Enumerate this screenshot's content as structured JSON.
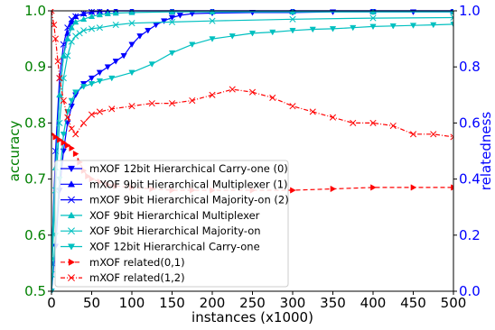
{
  "chart_data": {
    "type": "line",
    "xlabel": "instances (x1000)",
    "ylabel_left": "accuracy",
    "ylabel_right": "relatedness",
    "xlim": [
      0,
      500
    ],
    "ylim_left": [
      0.5,
      1.0
    ],
    "ylim_right": [
      0.0,
      1.0
    ],
    "x_ticks": [
      "0",
      "50",
      "100",
      "150",
      "200",
      "250",
      "300",
      "350",
      "400",
      "450",
      "500"
    ],
    "y_left_ticks": [
      "0.5",
      "0.6",
      "0.7",
      "0.8",
      "0.9",
      "1.0"
    ],
    "y_right_ticks": [
      "0.0",
      "0.2",
      "0.4",
      "0.6",
      "0.8",
      "1.0"
    ],
    "left_axis_color": "#008000",
    "right_axis_color": "#0000ff",
    "legend_position": "lower-left",
    "series": [
      {
        "name": "mXOF 12bit Hierarchical Carry-one (0)",
        "axis": "left",
        "color": "#0000ff",
        "marker": "triangle-down",
        "dash": "solid",
        "x": [
          0,
          5,
          10,
          15,
          20,
          25,
          30,
          40,
          50,
          60,
          70,
          80,
          90,
          100,
          110,
          120,
          130,
          140,
          150,
          160,
          175,
          200,
          250,
          300,
          350,
          400,
          450,
          500
        ],
        "y": [
          0.5,
          0.58,
          0.68,
          0.75,
          0.8,
          0.83,
          0.85,
          0.87,
          0.88,
          0.89,
          0.9,
          0.91,
          0.92,
          0.94,
          0.955,
          0.965,
          0.975,
          0.982,
          0.988,
          0.992,
          0.995,
          0.996,
          0.997,
          0.997,
          0.998,
          0.998,
          0.998,
          0.998
        ]
      },
      {
        "name": "mXOF 9bit Hierarchical Multiplexer (1)",
        "axis": "left",
        "color": "#0000ff",
        "marker": "triangle-up",
        "dash": "solid",
        "x": [
          0,
          5,
          10,
          15,
          20,
          25,
          30,
          40,
          50,
          60,
          70,
          80,
          100,
          150,
          200,
          300,
          400,
          500
        ],
        "y": [
          0.55,
          0.72,
          0.85,
          0.92,
          0.96,
          0.98,
          0.99,
          0.995,
          0.998,
          0.999,
          0.999,
          1.0,
          1.0,
          1.0,
          1.0,
          1.0,
          1.0,
          1.0
        ]
      },
      {
        "name": "mXOF 9bit Hierarchical Majority-on (2)",
        "axis": "left",
        "color": "#0000ff",
        "marker": "x",
        "dash": "solid",
        "x": [
          0,
          5,
          10,
          15,
          20,
          25,
          30,
          40,
          50,
          60,
          80,
          100,
          150,
          200,
          300,
          400,
          500
        ],
        "y": [
          0.55,
          0.75,
          0.88,
          0.94,
          0.97,
          0.985,
          0.99,
          0.995,
          0.998,
          0.999,
          1.0,
          1.0,
          1.0,
          1.0,
          1.0,
          1.0,
          1.0
        ]
      },
      {
        "name": "XOF 9bit Hierarchical Multiplexer",
        "axis": "left",
        "color": "#00c0c0",
        "marker": "triangle-up",
        "dash": "solid",
        "x": [
          0,
          5,
          10,
          15,
          20,
          25,
          30,
          40,
          50,
          60,
          70,
          80,
          100,
          150,
          200,
          300,
          400,
          500
        ],
        "y": [
          0.56,
          0.72,
          0.85,
          0.92,
          0.95,
          0.97,
          0.98,
          0.985,
          0.99,
          0.993,
          0.995,
          0.996,
          0.997,
          0.998,
          0.998,
          0.998,
          0.998,
          0.998
        ]
      },
      {
        "name": "XOF 9bit Hierarchical Majority-on",
        "axis": "left",
        "color": "#00c0c0",
        "marker": "x",
        "dash": "solid",
        "x": [
          0,
          5,
          10,
          15,
          20,
          25,
          30,
          35,
          40,
          50,
          60,
          80,
          100,
          150,
          200,
          300,
          400,
          500
        ],
        "y": [
          0.53,
          0.68,
          0.8,
          0.88,
          0.92,
          0.945,
          0.955,
          0.96,
          0.965,
          0.968,
          0.97,
          0.975,
          0.978,
          0.98,
          0.982,
          0.985,
          0.987,
          0.988
        ]
      },
      {
        "name": "XOF 12bit Hierarchical Carry-one",
        "axis": "left",
        "color": "#00c0c0",
        "marker": "triangle-down",
        "dash": "solid",
        "x": [
          0,
          5,
          10,
          15,
          20,
          25,
          30,
          40,
          50,
          60,
          75,
          100,
          125,
          150,
          175,
          200,
          225,
          250,
          275,
          300,
          325,
          350,
          375,
          400,
          425,
          450,
          475,
          500
        ],
        "y": [
          0.5,
          0.6,
          0.7,
          0.78,
          0.82,
          0.84,
          0.855,
          0.865,
          0.87,
          0.875,
          0.88,
          0.89,
          0.905,
          0.925,
          0.94,
          0.95,
          0.955,
          0.96,
          0.962,
          0.965,
          0.967,
          0.968,
          0.97,
          0.972,
          0.973,
          0.974,
          0.975,
          0.976
        ]
      },
      {
        "name": "mXOF related(0,1)",
        "axis": "right",
        "color": "#ff0000",
        "marker": "triangle-right",
        "dash": "dashed",
        "x": [
          0,
          5,
          10,
          15,
          20,
          25,
          30,
          35,
          40,
          45,
          50,
          60,
          70,
          80,
          100,
          125,
          150,
          175,
          200,
          250,
          300,
          350,
          400,
          450,
          500
        ],
        "y": [
          0.56,
          0.55,
          0.54,
          0.53,
          0.52,
          0.51,
          0.49,
          0.46,
          0.43,
          0.41,
          0.4,
          0.39,
          0.38,
          0.375,
          0.37,
          0.365,
          0.36,
          0.36,
          0.36,
          0.36,
          0.36,
          0.365,
          0.37,
          0.37,
          0.37
        ]
      },
      {
        "name": "mXOF related(1,2)",
        "axis": "right",
        "color": "#ff0000",
        "marker": "x",
        "dash": "dashdot",
        "x": [
          0,
          3,
          5,
          8,
          10,
          15,
          20,
          25,
          30,
          40,
          50,
          60,
          75,
          100,
          125,
          150,
          175,
          200,
          225,
          250,
          275,
          300,
          325,
          350,
          375,
          400,
          425,
          450,
          475,
          500
        ],
        "y": [
          1.0,
          0.95,
          0.9,
          0.82,
          0.76,
          0.68,
          0.62,
          0.58,
          0.56,
          0.6,
          0.63,
          0.64,
          0.65,
          0.66,
          0.67,
          0.67,
          0.68,
          0.7,
          0.72,
          0.71,
          0.69,
          0.66,
          0.64,
          0.62,
          0.6,
          0.6,
          0.59,
          0.56,
          0.56,
          0.55
        ]
      }
    ]
  }
}
